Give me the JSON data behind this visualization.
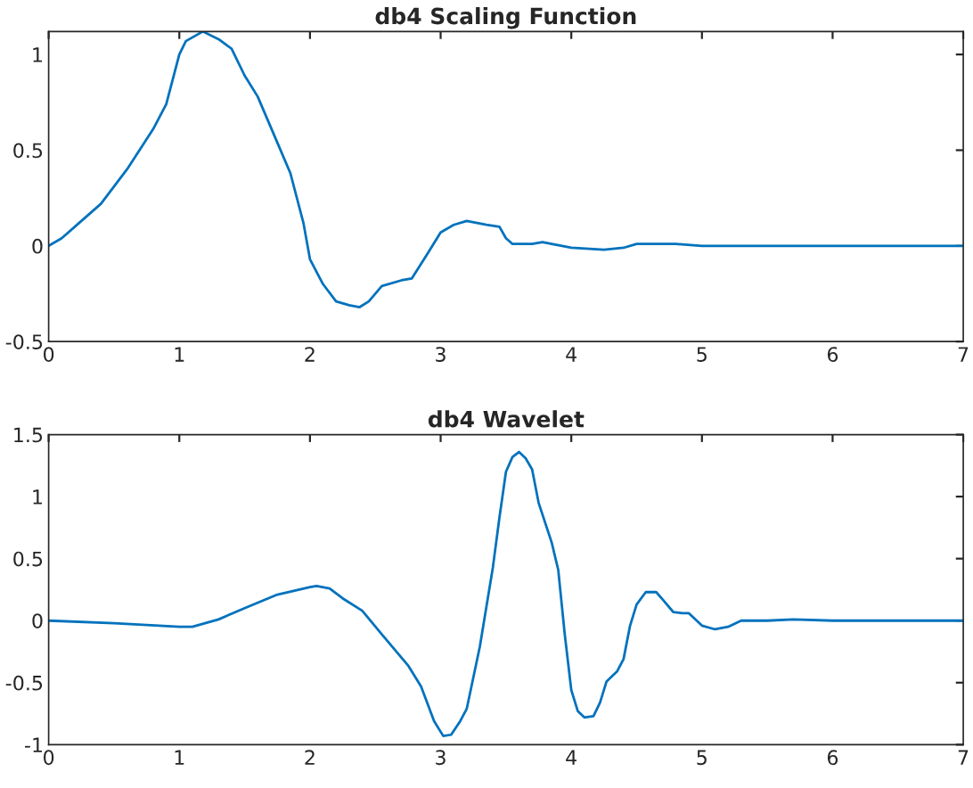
{
  "chart_data": [
    {
      "type": "line",
      "title": "db4 Scaling Function",
      "xlim": [
        0,
        7
      ],
      "ylim": [
        -0.5,
        1.12
      ],
      "xticks": [
        0,
        1,
        2,
        3,
        4,
        5,
        6,
        7
      ],
      "yticks": [
        -0.5,
        0,
        0.5,
        1
      ],
      "grid": false,
      "legend": false,
      "series": [
        {
          "color": "#0072bd",
          "x": [
            0,
            0.1,
            0.2,
            0.4,
            0.6,
            0.8,
            0.9,
            1.0,
            1.05,
            1.18,
            1.3,
            1.4,
            1.5,
            1.6,
            1.75,
            1.85,
            1.95,
            2.0,
            2.1,
            2.2,
            2.3,
            2.38,
            2.45,
            2.55,
            2.7,
            2.78,
            2.9,
            3.0,
            3.1,
            3.2,
            3.35,
            3.45,
            3.5,
            3.55,
            3.7,
            3.78,
            3.85,
            4.0,
            4.25,
            4.4,
            4.5,
            4.6,
            4.8,
            5.0,
            5.2,
            7
          ],
          "values": [
            0,
            0.04,
            0.1,
            0.22,
            0.4,
            0.61,
            0.74,
            1.0,
            1.07,
            1.12,
            1.08,
            1.03,
            0.89,
            0.78,
            0.54,
            0.38,
            0.12,
            -0.07,
            -0.2,
            -0.29,
            -0.31,
            -0.32,
            -0.29,
            -0.21,
            -0.18,
            -0.17,
            -0.04,
            0.07,
            0.11,
            0.13,
            0.11,
            0.1,
            0.04,
            0.01,
            0.01,
            0.02,
            0.01,
            -0.01,
            -0.02,
            -0.01,
            0.01,
            0.01,
            0.01,
            0,
            0,
            0
          ]
        }
      ]
    },
    {
      "type": "line",
      "title": "db4 Wavelet",
      "xlim": [
        0,
        7
      ],
      "ylim": [
        -1,
        1.5
      ],
      "xticks": [
        0,
        1,
        2,
        3,
        4,
        5,
        6,
        7
      ],
      "yticks": [
        -1,
        -0.5,
        0,
        0.5,
        1,
        1.5
      ],
      "grid": false,
      "legend": false,
      "series": [
        {
          "color": "#0072bd",
          "x": [
            0,
            0.5,
            1.0,
            1.1,
            1.3,
            1.5,
            1.75,
            2.0,
            2.05,
            2.15,
            2.25,
            2.4,
            2.55,
            2.75,
            2.85,
            2.95,
            3.02,
            3.08,
            3.15,
            3.2,
            3.3,
            3.4,
            3.45,
            3.5,
            3.55,
            3.6,
            3.65,
            3.7,
            3.75,
            3.85,
            3.9,
            3.95,
            4.0,
            4.05,
            4.1,
            4.17,
            4.22,
            4.27,
            4.35,
            4.4,
            4.45,
            4.5,
            4.57,
            4.65,
            4.7,
            4.78,
            4.85,
            4.9,
            5.0,
            5.1,
            5.2,
            5.3,
            5.5,
            5.7,
            6.0,
            7
          ],
          "values": [
            0,
            -0.02,
            -0.05,
            -0.05,
            0.01,
            0.1,
            0.21,
            0.27,
            0.28,
            0.26,
            0.18,
            0.08,
            -0.11,
            -0.36,
            -0.53,
            -0.81,
            -0.93,
            -0.92,
            -0.81,
            -0.71,
            -0.21,
            0.43,
            0.83,
            1.2,
            1.32,
            1.36,
            1.31,
            1.22,
            0.95,
            0.63,
            0.41,
            -0.11,
            -0.56,
            -0.73,
            -0.78,
            -0.77,
            -0.66,
            -0.49,
            -0.41,
            -0.31,
            -0.04,
            0.13,
            0.23,
            0.23,
            0.17,
            0.07,
            0.06,
            0.06,
            -0.04,
            -0.07,
            -0.05,
            0.0,
            0,
            0.01,
            0,
            0
          ]
        }
      ]
    }
  ]
}
